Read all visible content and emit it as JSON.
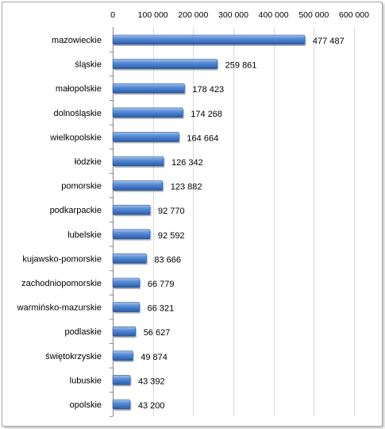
{
  "chart_data": {
    "type": "bar",
    "orientation": "horizontal",
    "title": "",
    "xlabel": "",
    "ylabel": "",
    "xlim": [
      0,
      600000
    ],
    "x_ticks": [
      0,
      100000,
      200000,
      300000,
      400000,
      500000,
      600000
    ],
    "x_tick_labels": [
      "0",
      "100 000",
      "200 000",
      "300 000",
      "400 000",
      "500 000",
      "600 000"
    ],
    "x_axis_position": "top",
    "grid": "vertical",
    "legend": "none",
    "bar_color": "#4f81bd",
    "categories": [
      "mazowieckie",
      "śląskie",
      "małopolskie",
      "dolnośląskie",
      "wielkopolskie",
      "łódzkie",
      "pomorskie",
      "podkarpackie",
      "lubelskie",
      "kujawsko-pomorskie",
      "zachodniopomorskie",
      "warmińsko-mazurskie",
      "podlaskie",
      "świętokrzyskie",
      "lubuskie",
      "opolskie"
    ],
    "values": [
      477487,
      259861,
      178423,
      174268,
      164664,
      126342,
      123882,
      92770,
      92592,
      83666,
      66779,
      66321,
      56627,
      49874,
      43392,
      43200
    ],
    "data_labels": [
      "477 487",
      "259 861",
      "178 423",
      "174 268",
      "164 664",
      "126 342",
      "123 882",
      "92 770",
      "92 592",
      "83 666",
      "66 779",
      "66 321",
      "56 627",
      "49 874",
      "43 392",
      "43 200"
    ]
  }
}
